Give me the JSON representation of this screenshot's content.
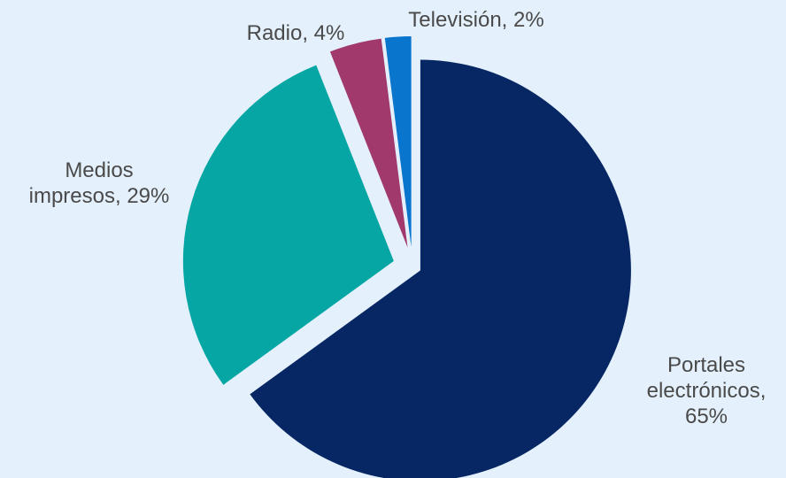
{
  "chart_data": {
    "type": "pie",
    "title": "",
    "exploded": true,
    "start_angle_deg": 0,
    "direction": "clockwise",
    "slices": [
      {
        "category": "Portales electrónicos",
        "value": 65,
        "label_lines": [
          "Portales",
          "electrónicos,",
          "65%"
        ],
        "color": "#062764"
      },
      {
        "category": "Medios impresos",
        "value": 29,
        "label_lines": [
          "Medios",
          "impresos, 29%"
        ],
        "color": "#05a6a4"
      },
      {
        "category": "Radio",
        "value": 4,
        "label_lines": [
          "Radio, 4%"
        ],
        "color": "#a1396d"
      },
      {
        "category": "Televisión",
        "value": 2,
        "label_lines": [
          "Televisión, 2%"
        ],
        "color": "#0a75cd"
      }
    ],
    "background": "#e4f0fc",
    "label_color": "#4a4a4a"
  }
}
